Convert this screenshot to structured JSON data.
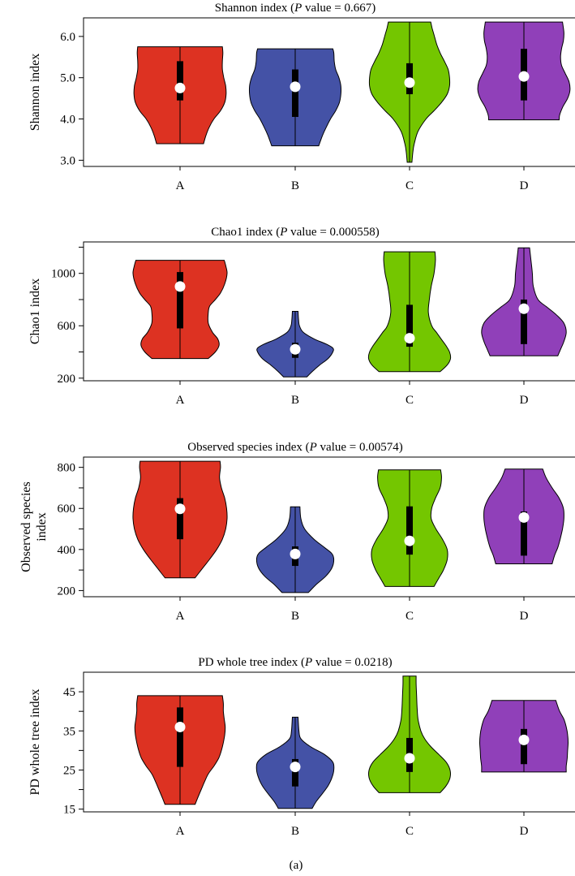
{
  "figure_label": "(a)",
  "chart_data": [
    {
      "type": "violin",
      "title": "Shannon index (",
      "title_italic": "P",
      "title_after": " value = 0.667)",
      "xlabel": "",
      "ylabel_lines": [
        "Shannon index"
      ],
      "categories": [
        "A",
        "B",
        "C",
        "D"
      ],
      "yticks": [
        3.0,
        4.0,
        5.0,
        6.0
      ],
      "ytick_labels": [
        "3.0",
        "4.0",
        "5.0",
        "6.0"
      ],
      "ylim": [
        2.85,
        6.45
      ],
      "grid": false,
      "colors": [
        "#dd3222",
        "#4452a6",
        "#74c600",
        "#9040b9"
      ],
      "groups": [
        {
          "name": "A",
          "min": 3.4,
          "max": 5.75,
          "q1": 4.45,
          "q3": 5.4,
          "median": 4.75,
          "profile": [
            [
              3.4,
              0.5
            ],
            [
              3.6,
              0.55
            ],
            [
              3.8,
              0.62
            ],
            [
              4.0,
              0.72
            ],
            [
              4.2,
              0.86
            ],
            [
              4.4,
              0.95
            ],
            [
              4.6,
              0.98
            ],
            [
              4.8,
              0.97
            ],
            [
              5.0,
              0.93
            ],
            [
              5.2,
              0.9
            ],
            [
              5.4,
              0.9
            ],
            [
              5.6,
              0.91
            ],
            [
              5.75,
              0.9
            ]
          ]
        },
        {
          "name": "B",
          "min": 3.35,
          "max": 5.7,
          "q1": 4.05,
          "q3": 5.2,
          "median": 4.78,
          "profile": [
            [
              3.35,
              0.5
            ],
            [
              3.6,
              0.58
            ],
            [
              3.8,
              0.66
            ],
            [
              4.0,
              0.75
            ],
            [
              4.2,
              0.86
            ],
            [
              4.4,
              0.94
            ],
            [
              4.6,
              0.97
            ],
            [
              4.8,
              0.97
            ],
            [
              5.0,
              0.93
            ],
            [
              5.2,
              0.86
            ],
            [
              5.4,
              0.83
            ],
            [
              5.6,
              0.82
            ],
            [
              5.7,
              0.8
            ]
          ]
        },
        {
          "name": "C",
          "min": 2.95,
          "max": 6.35,
          "q1": 4.6,
          "q3": 5.35,
          "median": 4.88,
          "profile": [
            [
              2.95,
              0.05
            ],
            [
              3.2,
              0.07
            ],
            [
              3.4,
              0.1
            ],
            [
              3.7,
              0.18
            ],
            [
              4.0,
              0.35
            ],
            [
              4.2,
              0.52
            ],
            [
              4.4,
              0.68
            ],
            [
              4.6,
              0.8
            ],
            [
              4.8,
              0.85
            ],
            [
              5.0,
              0.85
            ],
            [
              5.2,
              0.82
            ],
            [
              5.4,
              0.74
            ],
            [
              5.6,
              0.65
            ],
            [
              5.8,
              0.58
            ],
            [
              6.0,
              0.53
            ],
            [
              6.2,
              0.48
            ],
            [
              6.35,
              0.45
            ]
          ]
        },
        {
          "name": "D",
          "min": 3.98,
          "max": 6.35,
          "q1": 4.45,
          "q3": 5.7,
          "median": 5.03,
          "profile": [
            [
              3.98,
              0.75
            ],
            [
              4.1,
              0.76
            ],
            [
              4.3,
              0.83
            ],
            [
              4.5,
              0.93
            ],
            [
              4.7,
              0.98
            ],
            [
              4.9,
              0.96
            ],
            [
              5.1,
              0.88
            ],
            [
              5.3,
              0.8
            ],
            [
              5.5,
              0.78
            ],
            [
              5.7,
              0.8
            ],
            [
              5.9,
              0.84
            ],
            [
              6.1,
              0.85
            ],
            [
              6.35,
              0.82
            ]
          ]
        }
      ]
    },
    {
      "type": "violin",
      "title": "Chao1 index (",
      "title_italic": "P",
      "title_after": " value = 0.000558)",
      "xlabel": "",
      "ylabel_lines": [
        "Chao1 index"
      ],
      "categories": [
        "A",
        "B",
        "C",
        "D"
      ],
      "yticks": [
        200,
        400,
        600,
        800,
        1000,
        1200
      ],
      "ytick_labels": [
        "200",
        "",
        "600",
        "",
        "1000",
        ""
      ],
      "ylim": [
        180,
        1240
      ],
      "grid": false,
      "colors": [
        "#dd3222",
        "#4452a6",
        "#74c600",
        "#9040b9"
      ],
      "groups": [
        {
          "name": "A",
          "min": 350,
          "max": 1100,
          "q1": 580,
          "q3": 1010,
          "median": 900,
          "profile": [
            [
              350,
              0.6
            ],
            [
              400,
              0.75
            ],
            [
              450,
              0.83
            ],
            [
              500,
              0.8
            ],
            [
              550,
              0.69
            ],
            [
              620,
              0.6
            ],
            [
              700,
              0.6
            ],
            [
              750,
              0.63
            ],
            [
              800,
              0.75
            ],
            [
              850,
              0.86
            ],
            [
              920,
              0.95
            ],
            [
              1000,
              1.0
            ],
            [
              1060,
              0.97
            ],
            [
              1100,
              0.94
            ]
          ]
        },
        {
          "name": "B",
          "min": 210,
          "max": 710,
          "q1": 355,
          "q3": 470,
          "median": 420,
          "profile": [
            [
              210,
              0.25
            ],
            [
              250,
              0.36
            ],
            [
              300,
              0.52
            ],
            [
              350,
              0.7
            ],
            [
              400,
              0.8
            ],
            [
              430,
              0.8
            ],
            [
              460,
              0.66
            ],
            [
              500,
              0.4
            ],
            [
              550,
              0.17
            ],
            [
              600,
              0.09
            ],
            [
              650,
              0.07
            ],
            [
              710,
              0.06
            ]
          ]
        },
        {
          "name": "C",
          "min": 250,
          "max": 1165,
          "q1": 440,
          "q3": 760,
          "median": 505,
          "profile": [
            [
              250,
              0.65
            ],
            [
              300,
              0.8
            ],
            [
              350,
              0.87
            ],
            [
              400,
              0.85
            ],
            [
              450,
              0.77
            ],
            [
              500,
              0.67
            ],
            [
              550,
              0.57
            ],
            [
              600,
              0.47
            ],
            [
              700,
              0.4
            ],
            [
              800,
              0.42
            ],
            [
              900,
              0.46
            ],
            [
              1000,
              0.52
            ],
            [
              1100,
              0.55
            ],
            [
              1165,
              0.54
            ]
          ]
        },
        {
          "name": "D",
          "min": 370,
          "max": 1195,
          "q1": 460,
          "q3": 800,
          "median": 730,
          "profile": [
            [
              370,
              0.72
            ],
            [
              420,
              0.78
            ],
            [
              480,
              0.85
            ],
            [
              550,
              0.9
            ],
            [
              620,
              0.85
            ],
            [
              680,
              0.7
            ],
            [
              740,
              0.5
            ],
            [
              800,
              0.3
            ],
            [
              900,
              0.2
            ],
            [
              1000,
              0.18
            ],
            [
              1100,
              0.15
            ],
            [
              1195,
              0.12
            ]
          ]
        }
      ]
    },
    {
      "type": "violin",
      "title": "Observed species index (",
      "title_italic": "P",
      "title_after": " value = 0.00574)",
      "xlabel": "",
      "ylabel_lines": [
        "Observed species",
        "index"
      ],
      "categories": [
        "A",
        "B",
        "C",
        "D"
      ],
      "yticks": [
        200,
        300,
        400,
        500,
        600,
        700,
        800
      ],
      "ytick_labels": [
        "200",
        "",
        "400",
        "",
        "600",
        "",
        "800"
      ],
      "ylim": [
        170,
        850
      ],
      "grid": false,
      "colors": [
        "#dd3222",
        "#4452a6",
        "#74c600",
        "#9040b9"
      ],
      "groups": [
        {
          "name": "A",
          "min": 262,
          "max": 830,
          "q1": 450,
          "q3": 650,
          "median": 598,
          "profile": [
            [
              262,
              0.32
            ],
            [
              300,
              0.45
            ],
            [
              350,
              0.62
            ],
            [
              400,
              0.78
            ],
            [
              450,
              0.9
            ],
            [
              500,
              0.97
            ],
            [
              550,
              1.0
            ],
            [
              600,
              0.99
            ],
            [
              650,
              0.95
            ],
            [
              700,
              0.88
            ],
            [
              750,
              0.84
            ],
            [
              800,
              0.86
            ],
            [
              830,
              0.85
            ]
          ]
        },
        {
          "name": "B",
          "min": 190,
          "max": 608,
          "q1": 320,
          "q3": 415,
          "median": 378,
          "profile": [
            [
              190,
              0.28
            ],
            [
              230,
              0.45
            ],
            [
              270,
              0.65
            ],
            [
              310,
              0.78
            ],
            [
              350,
              0.82
            ],
            [
              380,
              0.78
            ],
            [
              410,
              0.62
            ],
            [
              450,
              0.4
            ],
            [
              500,
              0.2
            ],
            [
              550,
              0.12
            ],
            [
              608,
              0.1
            ]
          ]
        },
        {
          "name": "C",
          "min": 220,
          "max": 788,
          "q1": 375,
          "q3": 610,
          "median": 442,
          "profile": [
            [
              220,
              0.52
            ],
            [
              260,
              0.62
            ],
            [
              300,
              0.72
            ],
            [
              350,
              0.8
            ],
            [
              400,
              0.8
            ],
            [
              450,
              0.7
            ],
            [
              500,
              0.56
            ],
            [
              550,
              0.46
            ],
            [
              600,
              0.47
            ],
            [
              650,
              0.55
            ],
            [
              700,
              0.65
            ],
            [
              750,
              0.68
            ],
            [
              788,
              0.66
            ]
          ]
        },
        {
          "name": "D",
          "min": 330,
          "max": 792,
          "q1": 370,
          "q3": 585,
          "median": 556,
          "profile": [
            [
              330,
              0.6
            ],
            [
              370,
              0.65
            ],
            [
              410,
              0.72
            ],
            [
              450,
              0.77
            ],
            [
              500,
              0.82
            ],
            [
              550,
              0.85
            ],
            [
              600,
              0.84
            ],
            [
              650,
              0.75
            ],
            [
              700,
              0.6
            ],
            [
              750,
              0.47
            ],
            [
              792,
              0.4
            ]
          ]
        }
      ]
    },
    {
      "type": "violin",
      "title": "PD whole tree index (",
      "title_italic": "P",
      "title_after": " value = 0.0218)",
      "xlabel": "",
      "ylabel_lines": [
        "PD whole tree index"
      ],
      "categories": [
        "A",
        "B",
        "C",
        "D"
      ],
      "yticks": [
        15,
        20,
        25,
        30,
        35,
        40,
        45
      ],
      "ytick_labels": [
        "15",
        "",
        "25",
        "",
        "35",
        "",
        "45"
      ],
      "ylim": [
        14.3,
        50
      ],
      "grid": false,
      "colors": [
        "#dd3222",
        "#4452a6",
        "#74c600",
        "#9040b9"
      ],
      "groups": [
        {
          "name": "A",
          "min": 16.2,
          "max": 44.0,
          "q1": 25.8,
          "q3": 41.0,
          "median": 36.0,
          "profile": [
            [
              16.2,
              0.32
            ],
            [
              18,
              0.38
            ],
            [
              20,
              0.45
            ],
            [
              22,
              0.52
            ],
            [
              24,
              0.6
            ],
            [
              26,
              0.72
            ],
            [
              28,
              0.82
            ],
            [
              30,
              0.88
            ],
            [
              32,
              0.92
            ],
            [
              34,
              0.95
            ],
            [
              36,
              0.96
            ],
            [
              38,
              0.94
            ],
            [
              40,
              0.92
            ],
            [
              42,
              0.92
            ],
            [
              44,
              0.9
            ]
          ]
        },
        {
          "name": "B",
          "min": 15.2,
          "max": 38.5,
          "q1": 20.8,
          "q3": 27.8,
          "median": 25.8,
          "profile": [
            [
              15.2,
              0.36
            ],
            [
              17,
              0.45
            ],
            [
              19,
              0.58
            ],
            [
              21,
              0.7
            ],
            [
              23,
              0.78
            ],
            [
              25,
              0.82
            ],
            [
              27,
              0.8
            ],
            [
              29,
              0.62
            ],
            [
              31,
              0.32
            ],
            [
              33,
              0.12
            ],
            [
              35,
              0.08
            ],
            [
              38.5,
              0.06
            ]
          ]
        },
        {
          "name": "C",
          "min": 19.2,
          "max": 49.0,
          "q1": 24.5,
          "q3": 33.2,
          "median": 28.0,
          "profile": [
            [
              19.2,
              0.65
            ],
            [
              21,
              0.78
            ],
            [
              23,
              0.86
            ],
            [
              25,
              0.86
            ],
            [
              27,
              0.78
            ],
            [
              29,
              0.62
            ],
            [
              31,
              0.45
            ],
            [
              33,
              0.32
            ],
            [
              35,
              0.24
            ],
            [
              38,
              0.18
            ],
            [
              41,
              0.16
            ],
            [
              44,
              0.15
            ],
            [
              47,
              0.14
            ],
            [
              49,
              0.14
            ]
          ]
        },
        {
          "name": "D",
          "min": 24.5,
          "max": 42.8,
          "q1": 26.5,
          "q3": 35.5,
          "median": 32.7,
          "profile": [
            [
              24.5,
              0.9
            ],
            [
              26,
              0.9
            ],
            [
              28,
              0.92
            ],
            [
              30,
              0.93
            ],
            [
              32,
              0.94
            ],
            [
              34,
              0.93
            ],
            [
              36,
              0.9
            ],
            [
              38,
              0.85
            ],
            [
              40,
              0.76
            ],
            [
              42,
              0.7
            ],
            [
              42.8,
              0.68
            ]
          ]
        }
      ]
    }
  ]
}
